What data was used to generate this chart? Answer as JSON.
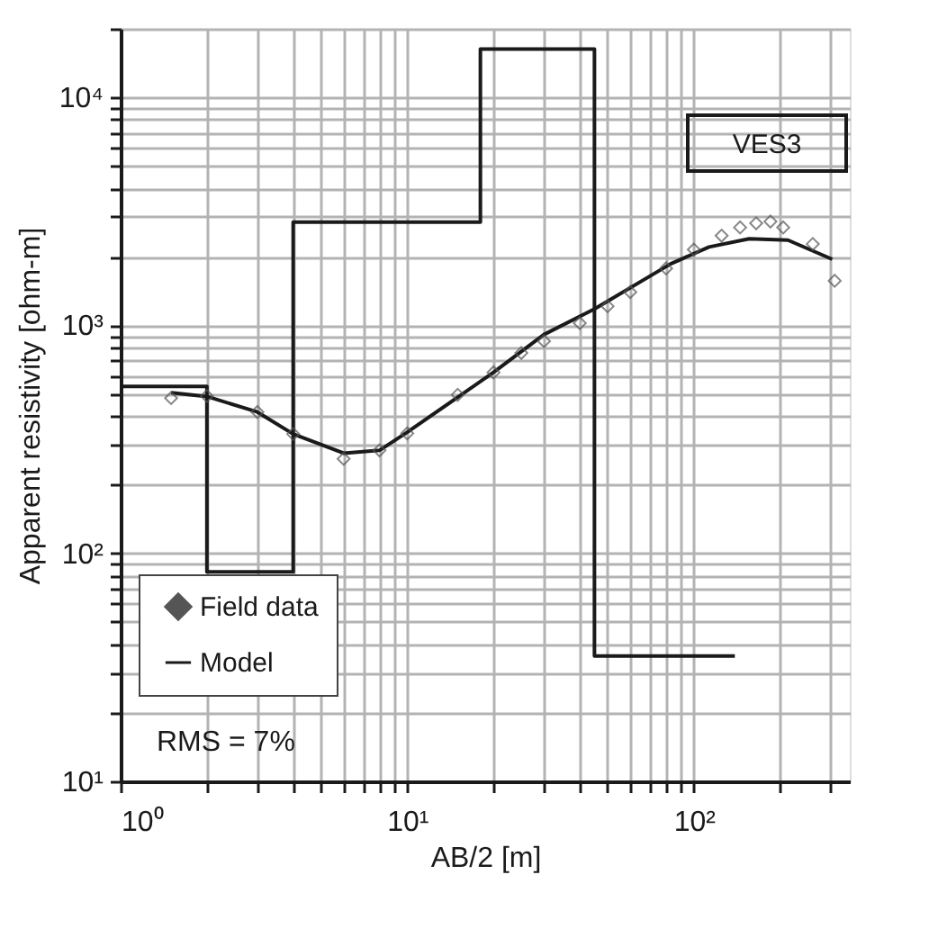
{
  "chart_data": {
    "type": "scatter",
    "xlabel": "AB/2 [m]",
    "ylabel": "Apparent resistivity [ohm-m]",
    "log": "xy",
    "grid": true,
    "legend": "bottom left",
    "xlim": [
      1,
      350
    ],
    "ylim": [
      10,
      20000
    ],
    "xticks": [
      {
        "value": 1,
        "label": "10⁰"
      },
      {
        "value": 2,
        "label": null
      },
      {
        "value": 3,
        "label": null
      },
      {
        "value": 4,
        "label": null
      },
      {
        "value": 5,
        "label": null
      },
      {
        "value": 6,
        "label": null
      },
      {
        "value": 7,
        "label": null
      },
      {
        "value": 8,
        "label": null
      },
      {
        "value": 9,
        "label": null
      },
      {
        "value": 10,
        "label": "10¹"
      },
      {
        "value": 20,
        "label": null
      },
      {
        "value": 30,
        "label": null
      },
      {
        "value": 40,
        "label": null
      },
      {
        "value": 50,
        "label": null
      },
      {
        "value": 60,
        "label": null
      },
      {
        "value": 70,
        "label": null
      },
      {
        "value": 80,
        "label": null
      },
      {
        "value": 90,
        "label": null
      },
      {
        "value": 100,
        "label": "10²"
      },
      {
        "value": 200,
        "label": null
      },
      {
        "value": 300,
        "label": null
      }
    ],
    "yticks": [
      {
        "value": 10,
        "label": "10¹"
      },
      {
        "value": 20,
        "label": null
      },
      {
        "value": 30,
        "label": null
      },
      {
        "value": 40,
        "label": null
      },
      {
        "value": 50,
        "label": null
      },
      {
        "value": 60,
        "label": null
      },
      {
        "value": 70,
        "label": null
      },
      {
        "value": 80,
        "label": null
      },
      {
        "value": 90,
        "label": null
      },
      {
        "value": 100,
        "label": "10²"
      },
      {
        "value": 200,
        "label": null
      },
      {
        "value": 300,
        "label": null
      },
      {
        "value": 400,
        "label": null
      },
      {
        "value": 500,
        "label": null
      },
      {
        "value": 600,
        "label": null
      },
      {
        "value": 700,
        "label": null
      },
      {
        "value": 800,
        "label": null
      },
      {
        "value": 900,
        "label": null
      },
      {
        "value": 1000,
        "label": "10³"
      },
      {
        "value": 2000,
        "label": null
      },
      {
        "value": 3000,
        "label": null
      },
      {
        "value": 4000,
        "label": null
      },
      {
        "value": 5000,
        "label": null
      },
      {
        "value": 6000,
        "label": null
      },
      {
        "value": 7000,
        "label": null
      },
      {
        "value": 8000,
        "label": null
      },
      {
        "value": 9000,
        "label": null
      },
      {
        "value": 10000,
        "label": "10⁴"
      },
      {
        "value": 20000,
        "label": null
      }
    ],
    "annotations": [
      "VES3",
      "RMS = 7%"
    ],
    "series": [
      {
        "name": "Field data",
        "marker": "diamond",
        "color": "#555555",
        "x": [
          1.5,
          2,
          3,
          4,
          6,
          8,
          10,
          15,
          20,
          25,
          30,
          40,
          50,
          60,
          80,
          100,
          125,
          145,
          165,
          185,
          205,
          260,
          310
        ],
        "values": [
          480,
          490,
          417,
          334,
          260,
          283,
          336,
          496,
          622,
          757,
          853,
          1023,
          1214,
          1400,
          1778,
          2150,
          2476,
          2690,
          2805,
          2855,
          2690,
          2275,
          1570
        ]
      },
      {
        "name": "Model",
        "type": "line",
        "line_style": "solid",
        "color": "#1a1a1a",
        "x": [
          1.5,
          2,
          3,
          4,
          6,
          8,
          10,
          20,
          30,
          45,
          83,
          113,
          156,
          213,
          304
        ],
        "values": [
          507,
          488,
          417,
          334,
          275,
          283,
          340,
          622,
          912,
          1180,
          1862,
          2208,
          2400,
          2366,
          1950
        ]
      },
      {
        "type": "step",
        "line_style": "solid",
        "color": "#1a1a1a",
        "x": [
          1,
          2,
          4,
          18,
          45,
          139
        ],
        "values": [
          540,
          83,
          2840,
          16300,
          35.5,
          35.5
        ]
      }
    ]
  }
}
